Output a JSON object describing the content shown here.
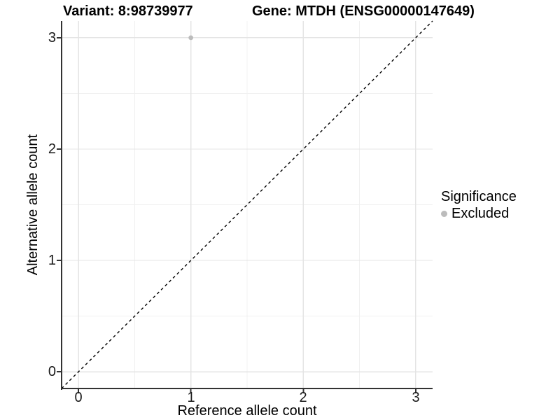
{
  "header": {
    "title_variant": "Variant: 8:98739977",
    "title_gene": "Gene: MTDH (ENSG00000147649)"
  },
  "chart_data": {
    "type": "scatter",
    "title": "Variant: 8:98739977   Gene: MTDH (ENSG00000147649)",
    "xlabel": "Reference allele count",
    "ylabel": "Alternative allele count",
    "xlim": [
      -0.15,
      3.15
    ],
    "ylim": [
      -0.15,
      3.15
    ],
    "xticks": [
      "0",
      "1",
      "2",
      "3"
    ],
    "yticks": [
      "3",
      "2",
      "1",
      "0"
    ],
    "xtick_values": [
      0,
      1,
      2,
      3
    ],
    "ytick_values": [
      0,
      1,
      2,
      3
    ],
    "minor_tick_values": [
      0.5,
      1.5,
      2.5
    ],
    "grid": "major and minor gridlines, white panel, no top/right border",
    "series": [
      {
        "name": "Excluded",
        "color": "#bcbcbc",
        "points": [
          {
            "x": 1,
            "y": 3
          }
        ]
      }
    ],
    "reference_line": {
      "type": "identity y=x",
      "style": "dashed",
      "color": "#000000",
      "x1": -0.15,
      "y1": -0.15,
      "x2": 3.15,
      "y2": 3.15
    },
    "legend": {
      "title": "Significance",
      "position": "right",
      "entries": [
        {
          "label": "Excluded",
          "color": "#bcbcbc"
        }
      ]
    }
  },
  "colors": {
    "axis_line": "#333333",
    "tick_mark": "#333333",
    "tick_text": "#1a1a1a",
    "grid_major": "#e4e4e4",
    "grid_minor": "#f0f0f0",
    "background": "#ffffff"
  }
}
